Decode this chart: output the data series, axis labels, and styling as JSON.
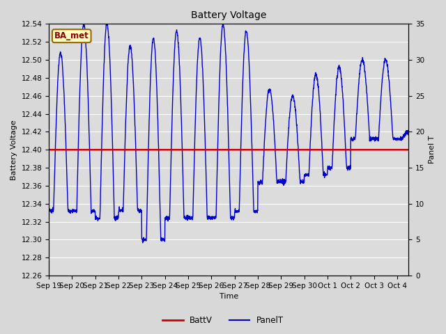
{
  "title": "Battery Voltage",
  "ylabel_left": "Battery Voltage",
  "ylabel_right": "Panel T",
  "xlabel": "Time",
  "ylim_left": [
    12.26,
    12.54
  ],
  "ylim_right": [
    0,
    35
  ],
  "battv_value": 12.4,
  "fig_bg_color": "#d8d8d8",
  "plot_bg_color": "#dcdcdc",
  "batt_color": "#cc0000",
  "panel_color": "#0000cc",
  "legend_label_batt": "BattV",
  "legend_label_panel": "PanelT",
  "station_label": "BA_met",
  "x_tick_labels": [
    "Sep 19",
    "Sep 20",
    "Sep 21",
    "Sep 22",
    "Sep 23",
    "Sep 24",
    "Sep 25",
    "Sep 26",
    "Sep 27",
    "Sep 28",
    "Sep 29",
    "Sep 30",
    "Oct 1",
    "Oct 2",
    "Oct 3",
    "Oct 4"
  ],
  "grid_color": "#ffffff",
  "title_fontsize": 10,
  "label_fontsize": 8,
  "tick_fontsize": 7.5
}
